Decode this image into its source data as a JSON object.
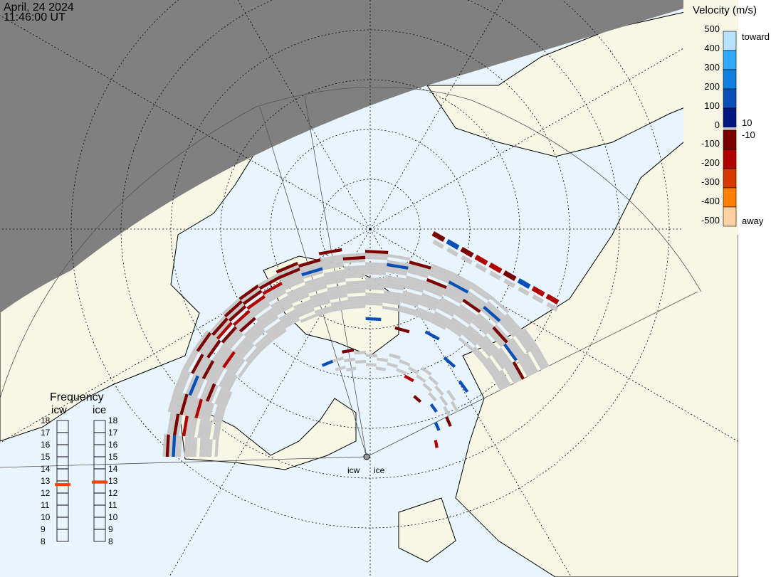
{
  "header": {
    "date": "April, 24 2024",
    "time": "11:46:00 UT"
  },
  "colors": {
    "ocean": "#e8f4fe",
    "land": "#f7f7e6",
    "night": "#808080",
    "ground_scatter": "#c8c8c8"
  },
  "velocity_scale": {
    "title": "Velocity (m/s)",
    "ticks": [
      "500",
      "400",
      "300",
      "200",
      "100",
      "0",
      "-100",
      "-200",
      "-300",
      "-400",
      "-500"
    ],
    "toward_label": "toward",
    "away_label": "away",
    "pos_threshold": "10",
    "neg_threshold": "-10",
    "toward_colors": [
      "#b8e0ff",
      "#30a8ff",
      "#1080e0",
      "#0850b8",
      "#001880"
    ],
    "away_colors": [
      "#7a0000",
      "#b00000",
      "#d83800",
      "#ff8000",
      "#ffd0a0"
    ]
  },
  "frequency": {
    "title": "Frequency",
    "ticks": [
      "18",
      "17",
      "16",
      "15",
      "14",
      "13",
      "12",
      "11",
      "10",
      "9",
      "8"
    ],
    "radars": [
      {
        "name": "icw",
        "mhz": 12.7
      },
      {
        "name": "ice",
        "mhz": 12.9
      }
    ]
  },
  "radar_labels": [
    "icw",
    "ice"
  ],
  "echoes": [
    [
      0,
      60,
      -60
    ],
    [
      0,
      58,
      150
    ],
    [
      1,
      58,
      -80
    ],
    [
      1,
      55,
      -150
    ],
    [
      2,
      57,
      -60
    ],
    [
      2,
      52,
      -100
    ],
    [
      3,
      56,
      120
    ],
    [
      3,
      50,
      -80
    ],
    [
      4,
      58,
      -50
    ],
    [
      4,
      54,
      -90
    ],
    [
      5,
      60,
      -70
    ],
    [
      5,
      56,
      -80
    ],
    [
      5,
      50,
      -150
    ],
    [
      6,
      59,
      -80
    ],
    [
      6,
      57,
      -120
    ],
    [
      6,
      55,
      -90
    ],
    [
      7,
      60,
      -70
    ],
    [
      7,
      58,
      -90
    ],
    [
      7,
      56,
      -100
    ],
    [
      7,
      53,
      -80
    ],
    [
      8,
      61,
      -60
    ],
    [
      8,
      59,
      -90
    ],
    [
      8,
      57,
      -110
    ],
    [
      9,
      60,
      -80
    ],
    [
      9,
      58,
      -100
    ],
    [
      10,
      62,
      -70
    ],
    [
      10,
      60,
      -90
    ],
    [
      11,
      61,
      -60
    ],
    [
      11,
      58,
      120
    ],
    [
      12,
      63,
      -60
    ],
    [
      13,
      60,
      -80
    ],
    [
      14,
      62,
      -70
    ],
    [
      15,
      58,
      110
    ],
    [
      16,
      60,
      -90
    ],
    [
      17,
      56,
      -70
    ],
    [
      18,
      58,
      100
    ],
    [
      19,
      55,
      -80
    ],
    [
      20,
      57,
      120
    ],
    [
      21,
      54,
      -70
    ],
    [
      22,
      53,
      150
    ],
    [
      23,
      52,
      -90
    ],
    [
      14,
      40,
      120
    ],
    [
      16,
      38,
      -90
    ],
    [
      18,
      40,
      110
    ],
    [
      20,
      36,
      100
    ],
    [
      22,
      34,
      130
    ],
    [
      12,
      30,
      -80
    ],
    [
      10,
      28,
      140
    ],
    [
      24,
      20,
      120
    ],
    [
      26,
      18,
      -100
    ],
    [
      20,
      20,
      -70
    ],
    [
      22,
      22,
      140
    ],
    [
      18,
      24,
      -110
    ],
    [
      24,
      24,
      -60
    ]
  ],
  "far_echoes": [
    [
      0,
      -90
    ],
    [
      1,
      150
    ],
    [
      2,
      -80
    ],
    [
      3,
      -100
    ],
    [
      4,
      -120
    ],
    [
      5,
      -80
    ],
    [
      6,
      150
    ],
    [
      7,
      -110
    ],
    [
      8,
      -150
    ]
  ]
}
